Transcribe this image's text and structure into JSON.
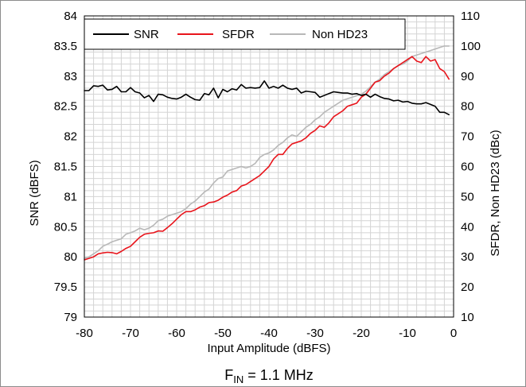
{
  "chart_data": {
    "type": "line",
    "title": "",
    "caption": {
      "main": "F",
      "subscript": "IN",
      "rest": " = 1.1 MHz"
    },
    "xlabel": "Input Amplitude (dBFS)",
    "ylabel_left": "SNR (dBFS)",
    "ylabel_right": "SFDR, Non HD23 (dBc)",
    "xlim": [
      -80,
      0
    ],
    "ylim_left": [
      79,
      84
    ],
    "ylim_right": [
      10,
      110
    ],
    "x_ticks": [
      "-80",
      "-70",
      "-60",
      "-50",
      "-40",
      "-30",
      "-20",
      "-10",
      "0"
    ],
    "y_left_ticks": [
      "84",
      "83.5",
      "83",
      "82.5",
      "82",
      "81.5",
      "81",
      "80.5",
      "80",
      "79.5",
      "79"
    ],
    "y_right_ticks": [
      "110",
      "100",
      "90",
      "80",
      "70",
      "60",
      "50",
      "40",
      "30",
      "20",
      "10"
    ],
    "grid": true,
    "legend_position": "top-left",
    "series": [
      {
        "name": "SNR",
        "axis": "left",
        "color": "#000000",
        "x": [
          -80,
          -79,
          -78,
          -77,
          -76,
          -75,
          -74,
          -73,
          -72,
          -71,
          -70,
          -69,
          -68,
          -67,
          -66,
          -65,
          -64,
          -63,
          -62,
          -61,
          -60,
          -59,
          -58,
          -57,
          -56,
          -55,
          -54,
          -53,
          -52,
          -51,
          -50,
          -49,
          -48,
          -47,
          -46,
          -45,
          -44,
          -43,
          -42,
          -41,
          -40,
          -39,
          -38,
          -37,
          -36,
          -35,
          -34,
          -33,
          -32,
          -31,
          -30,
          -29,
          -28,
          -27,
          -26,
          -25,
          -24,
          -23,
          -22,
          -21,
          -20,
          -19,
          -18,
          -17,
          -16,
          -15,
          -14,
          -13,
          -12,
          -11,
          -10,
          -9,
          -8,
          -7,
          -6,
          -5,
          -4,
          -3,
          -2,
          -1
        ],
        "y": [
          82.76,
          82.76,
          82.84,
          82.83,
          82.85,
          82.77,
          82.78,
          82.83,
          82.74,
          82.74,
          82.81,
          82.74,
          82.72,
          82.64,
          82.68,
          82.58,
          82.7,
          82.69,
          82.65,
          82.63,
          82.62,
          82.65,
          82.7,
          82.65,
          82.61,
          82.6,
          82.71,
          82.69,
          82.8,
          82.64,
          82.78,
          82.74,
          82.79,
          82.77,
          82.86,
          82.8,
          82.81,
          82.8,
          82.81,
          82.92,
          82.8,
          82.83,
          82.8,
          82.85,
          82.8,
          82.78,
          82.8,
          82.72,
          82.75,
          82.74,
          82.73,
          82.65,
          82.68,
          82.71,
          82.74,
          82.73,
          82.72,
          82.72,
          82.7,
          82.71,
          82.68,
          82.7,
          82.65,
          82.7,
          82.66,
          82.63,
          82.62,
          82.59,
          82.6,
          82.57,
          82.58,
          82.55,
          82.54,
          82.54,
          82.56,
          82.53,
          82.5,
          82.4,
          82.4,
          82.36
        ]
      },
      {
        "name": "SFDR",
        "axis": "right",
        "color": "#e8141b",
        "x": [
          -80,
          -79,
          -78,
          -77,
          -76,
          -75,
          -74,
          -73,
          -72,
          -71,
          -70,
          -69,
          -68,
          -67,
          -66,
          -65,
          -64,
          -63,
          -62,
          -61,
          -60,
          -59,
          -58,
          -57,
          -56,
          -55,
          -54,
          -53,
          -52,
          -51,
          -50,
          -49,
          -48,
          -47,
          -46,
          -45,
          -44,
          -43,
          -42,
          -41,
          -40,
          -39,
          -38,
          -37,
          -36,
          -35,
          -34,
          -33,
          -32,
          -31,
          -30,
          -29,
          -28,
          -27,
          -26,
          -25,
          -24,
          -23,
          -22,
          -21,
          -20,
          -19,
          -18,
          -17,
          -16,
          -15,
          -14,
          -13,
          -12,
          -11,
          -10,
          -9,
          -8,
          -7,
          -6,
          -5,
          -4,
          -3,
          -2,
          -1
        ],
        "y": [
          29.0,
          29.5,
          30.0,
          31.0,
          31.3,
          31.5,
          31.4,
          31.0,
          31.8,
          32.8,
          33.5,
          35.0,
          36.5,
          37.5,
          37.8,
          38.0,
          38.6,
          38.5,
          39.7,
          41.0,
          42.5,
          44.0,
          45.0,
          45.0,
          45.6,
          46.5,
          47.0,
          48.0,
          48.2,
          48.8,
          49.8,
          50.5,
          51.5,
          52.0,
          53.5,
          54.0,
          55.0,
          56.0,
          57.0,
          58.5,
          60.0,
          62.5,
          64.0,
          64.0,
          66.0,
          67.5,
          68.0,
          68.5,
          69.5,
          71.0,
          72.0,
          73.5,
          73.0,
          74.5,
          76.5,
          77.5,
          78.5,
          80.0,
          80.5,
          81.0,
          83.0,
          84.0,
          86.0,
          88.0,
          88.5,
          90.0,
          91.0,
          92.5,
          93.5,
          94.5,
          95.5,
          96.5,
          95.0,
          94.5,
          96.5,
          95.0,
          95.5,
          92.5,
          91.5,
          89.0
        ]
      },
      {
        "name": "Non HD23",
        "axis": "right",
        "color": "#b8b8b8",
        "x": [
          -80,
          -79,
          -78,
          -77,
          -76,
          -75,
          -74,
          -73,
          -72,
          -71,
          -70,
          -69,
          -68,
          -67,
          -66,
          -65,
          -64,
          -63,
          -62,
          -61,
          -60,
          -59,
          -58,
          -57,
          -56,
          -55,
          -54,
          -53,
          -52,
          -51,
          -50,
          -49,
          -48,
          -47,
          -46,
          -45,
          -44,
          -43,
          -42,
          -41,
          -40,
          -39,
          -38,
          -37,
          -36,
          -35,
          -34,
          -33,
          -32,
          -31,
          -30,
          -29,
          -28,
          -27,
          -26,
          -25,
          -24,
          -23,
          -22,
          -21,
          -20,
          -19,
          -18,
          -17,
          -16,
          -15,
          -14,
          -13,
          -12,
          -11,
          -10,
          -9,
          -8,
          -7,
          -6,
          -5,
          -4,
          -3,
          -2,
          -1
        ],
        "y": [
          29.5,
          30.0,
          31.0,
          32.0,
          33.5,
          34.2,
          35.0,
          35.5,
          36.0,
          37.5,
          38.0,
          38.6,
          39.5,
          39.0,
          39.5,
          40.5,
          42.0,
          42.5,
          43.5,
          44.0,
          44.5,
          45.0,
          46.0,
          47.5,
          48.5,
          50.0,
          51.5,
          52.5,
          54.5,
          56.0,
          56.5,
          58.5,
          59.0,
          59.5,
          60.0,
          59.5,
          60.0,
          61.0,
          63.0,
          64.0,
          64.5,
          65.5,
          67.0,
          68.0,
          69.5,
          70.5,
          70.0,
          71.5,
          73.0,
          74.0,
          75.5,
          76.5,
          78.0,
          79.0,
          80.0,
          81.0,
          82.0,
          82.5,
          83.0,
          83.5,
          84.0,
          85.0,
          86.5,
          88.0,
          89.0,
          90.5,
          91.5,
          92.5,
          93.5,
          94.0,
          95.0,
          96.5,
          97.0,
          97.5,
          98.0,
          98.5,
          99.0,
          99.5,
          100.0,
          100.0
        ]
      }
    ]
  }
}
